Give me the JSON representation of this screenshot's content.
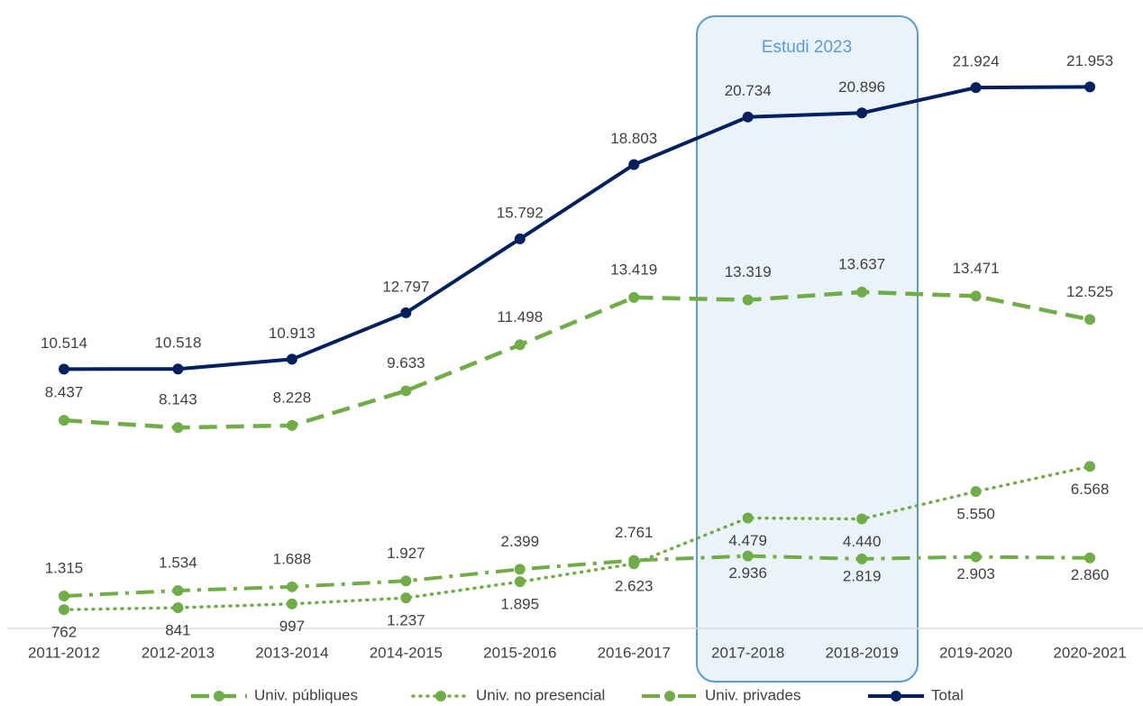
{
  "chart_data": {
    "type": "line",
    "annotation": "Estudi 2023",
    "categories": [
      "2011-2012",
      "2012-2013",
      "2013-2014",
      "2014-2015",
      "2015-2016",
      "2016-2017",
      "2017-2018",
      "2018-2019",
      "2019-2020",
      "2020-2021"
    ],
    "ylim": [
      0,
      25000
    ],
    "series": [
      {
        "name": "Univ. públiques",
        "color": "#70ad47",
        "values": [
          8437,
          8143,
          8228,
          9633,
          11498,
          13419,
          13319,
          13637,
          13471,
          12525
        ],
        "value_labels": [
          "8.437",
          "8.143",
          "8.228",
          "9.633",
          "11.498",
          "13.419",
          "13.319",
          "13.637",
          "13.471",
          "12.525"
        ]
      },
      {
        "name": "Univ. no presencial",
        "color": "#70ad47",
        "values": [
          762,
          841,
          997,
          1237,
          1895,
          2623,
          4479,
          4440,
          5550,
          6568
        ],
        "value_labels": [
          "762",
          "841",
          "997",
          "1.237",
          "1.895",
          "2.623",
          "4.479",
          "4.440",
          "5.550",
          "6.568"
        ]
      },
      {
        "name": "Univ. privades",
        "color": "#70ad47",
        "values": [
          1315,
          1534,
          1688,
          1927,
          2399,
          2761,
          2936,
          2819,
          2903,
          2860
        ],
        "value_labels": [
          "1.315",
          "1.534",
          "1.688",
          "1.927",
          "2.399",
          "2.761",
          "2.936",
          "2.819",
          "2.903",
          "2.860"
        ]
      },
      {
        "name": "Total",
        "color": "#002060",
        "values": [
          10514,
          10518,
          10913,
          12797,
          15792,
          18803,
          20734,
          20896,
          21924,
          21953
        ],
        "value_labels": [
          "10.514",
          "10.518",
          "10.913",
          "12.797",
          "15.792",
          "18.803",
          "20.734",
          "20.896",
          "21.924",
          "21.953"
        ]
      }
    ]
  }
}
